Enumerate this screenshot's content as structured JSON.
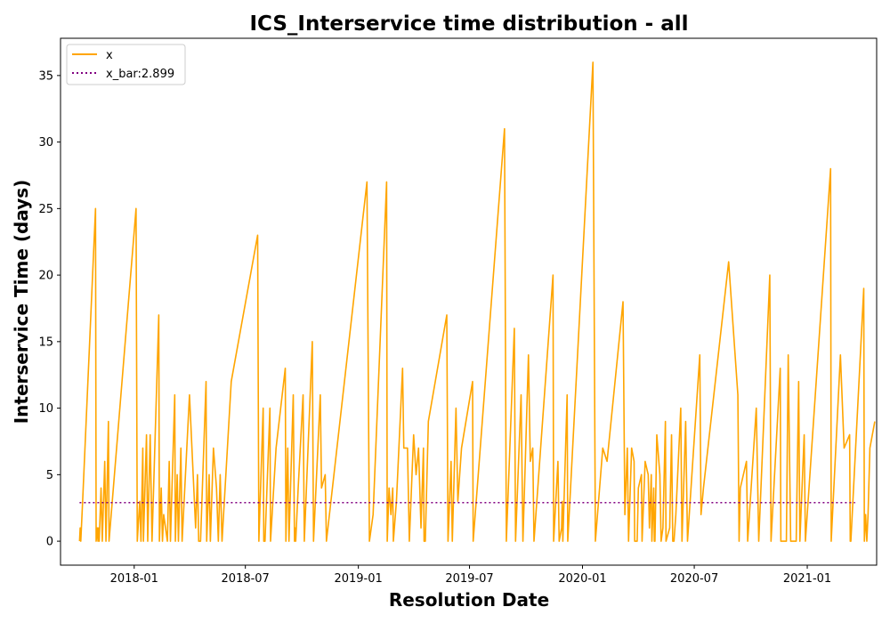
{
  "chart_data": {
    "type": "line",
    "title": "ICS_Interservice time distribution - all",
    "xlabel": "Resolution Date",
    "ylabel": "Interservice Time (days)",
    "xlim": [
      "2017-09-03",
      "2021-04-24"
    ],
    "ylim": [
      -1.8,
      37.8
    ],
    "x_ticks": [
      "2018-01",
      "2018-07",
      "2019-01",
      "2019-07",
      "2020-01",
      "2020-07",
      "2021-01"
    ],
    "y_ticks": [
      0,
      5,
      10,
      15,
      20,
      25,
      30,
      35
    ],
    "grid": false,
    "legend_position": "top-left",
    "legend": [
      "x",
      "x_bar:2.899"
    ],
    "mean_line": {
      "name": "x_bar:2.899",
      "value": 2.899,
      "color": "#800080",
      "style": "dotted",
      "x_range": [
        "2017-10-04",
        "2021-03-20"
      ]
    },
    "series": [
      {
        "name": "x",
        "color": "#FFA500",
        "points": [
          [
            "2017-10-04",
            0
          ],
          [
            "2017-10-05",
            1
          ],
          [
            "2017-10-06",
            0
          ],
          [
            "2017-10-09",
            3
          ],
          [
            "2017-10-30",
            25
          ],
          [
            "2017-10-31",
            0
          ],
          [
            "2017-11-02",
            1
          ],
          [
            "2017-11-03",
            0
          ],
          [
            "2017-11-04",
            1
          ],
          [
            "2017-11-05",
            0
          ],
          [
            "2017-11-08",
            4
          ],
          [
            "2017-11-10",
            0
          ],
          [
            "2017-11-14",
            6
          ],
          [
            "2017-11-16",
            0
          ],
          [
            "2017-11-20",
            9
          ],
          [
            "2017-11-21",
            0
          ],
          [
            "2018-01-04",
            25
          ],
          [
            "2018-01-06",
            0
          ],
          [
            "2018-01-10",
            3
          ],
          [
            "2018-01-12",
            0
          ],
          [
            "2018-01-15",
            7
          ],
          [
            "2018-01-16",
            0
          ],
          [
            "2018-01-21",
            8
          ],
          [
            "2018-01-23",
            0
          ],
          [
            "2018-01-27",
            8
          ],
          [
            "2018-01-30",
            0
          ],
          [
            "2018-02-10",
            17
          ],
          [
            "2018-02-11",
            0
          ],
          [
            "2018-02-14",
            4
          ],
          [
            "2018-02-16",
            0
          ],
          [
            "2018-02-18",
            2
          ],
          [
            "2018-02-21",
            1
          ],
          [
            "2018-02-24",
            0
          ],
          [
            "2018-02-27",
            6
          ],
          [
            "2018-03-01",
            0
          ],
          [
            "2018-03-08",
            11
          ],
          [
            "2018-03-09",
            0
          ],
          [
            "2018-03-12",
            5
          ],
          [
            "2018-03-14",
            0
          ],
          [
            "2018-03-18",
            7
          ],
          [
            "2018-03-20",
            0
          ],
          [
            "2018-04-01",
            11
          ],
          [
            "2018-04-07",
            5
          ],
          [
            "2018-04-11",
            1
          ],
          [
            "2018-04-14",
            5
          ],
          [
            "2018-04-16",
            0
          ],
          [
            "2018-04-19",
            0
          ],
          [
            "2018-04-28",
            12
          ],
          [
            "2018-04-29",
            0
          ],
          [
            "2018-05-03",
            5
          ],
          [
            "2018-05-05",
            0
          ],
          [
            "2018-05-10",
            7
          ],
          [
            "2018-05-15",
            4
          ],
          [
            "2018-05-18",
            0
          ],
          [
            "2018-05-21",
            5
          ],
          [
            "2018-05-24",
            0
          ],
          [
            "2018-06-08",
            12
          ],
          [
            "2018-07-21",
            23
          ],
          [
            "2018-07-23",
            0
          ],
          [
            "2018-07-30",
            10
          ],
          [
            "2018-07-31",
            0
          ],
          [
            "2018-08-02",
            0
          ],
          [
            "2018-08-10",
            10
          ],
          [
            "2018-08-11",
            0
          ],
          [
            "2018-08-20",
            7
          ],
          [
            "2018-09-04",
            13
          ],
          [
            "2018-09-05",
            0
          ],
          [
            "2018-09-08",
            7
          ],
          [
            "2018-09-10",
            0
          ],
          [
            "2018-09-17",
            11
          ],
          [
            "2018-09-19",
            0
          ],
          [
            "2018-09-20",
            1
          ],
          [
            "2018-09-21",
            0
          ],
          [
            "2018-09-22",
            1
          ],
          [
            "2018-09-25",
            4
          ],
          [
            "2018-10-03",
            11
          ],
          [
            "2018-10-05",
            0
          ],
          [
            "2018-10-18",
            15
          ],
          [
            "2018-10-20",
            0
          ],
          [
            "2018-10-31",
            11
          ],
          [
            "2018-11-02",
            4
          ],
          [
            "2018-11-08",
            5
          ],
          [
            "2018-11-10",
            0
          ],
          [
            "2019-01-15",
            27
          ],
          [
            "2019-01-19",
            0
          ],
          [
            "2019-01-25",
            2
          ],
          [
            "2019-02-16",
            27
          ],
          [
            "2019-02-17",
            0
          ],
          [
            "2019-02-20",
            4
          ],
          [
            "2019-02-23",
            2
          ],
          [
            "2019-02-26",
            4
          ],
          [
            "2019-02-27",
            0
          ],
          [
            "2019-03-04",
            3
          ],
          [
            "2019-03-14",
            13
          ],
          [
            "2019-03-16",
            7
          ],
          [
            "2019-03-22",
            7
          ],
          [
            "2019-03-25",
            0
          ],
          [
            "2019-04-01",
            8
          ],
          [
            "2019-04-05",
            5
          ],
          [
            "2019-04-09",
            7
          ],
          [
            "2019-04-13",
            1
          ],
          [
            "2019-04-17",
            7
          ],
          [
            "2019-04-18",
            0
          ],
          [
            "2019-04-20",
            0
          ],
          [
            "2019-04-25",
            9
          ],
          [
            "2019-05-25",
            17
          ],
          [
            "2019-05-27",
            0
          ],
          [
            "2019-06-01",
            6
          ],
          [
            "2019-06-03",
            0
          ],
          [
            "2019-06-09",
            10
          ],
          [
            "2019-06-12",
            3
          ],
          [
            "2019-06-18",
            7
          ],
          [
            "2019-07-06",
            12
          ],
          [
            "2019-07-07",
            0
          ],
          [
            "2019-08-27",
            31
          ],
          [
            "2019-08-30",
            0
          ],
          [
            "2019-09-12",
            16
          ],
          [
            "2019-09-14",
            0
          ],
          [
            "2019-09-23",
            11
          ],
          [
            "2019-09-26",
            0
          ],
          [
            "2019-10-05",
            14
          ],
          [
            "2019-10-08",
            6
          ],
          [
            "2019-10-12",
            7
          ],
          [
            "2019-10-14",
            0
          ],
          [
            "2019-11-14",
            20
          ],
          [
            "2019-11-15",
            0
          ],
          [
            "2019-11-22",
            6
          ],
          [
            "2019-11-24",
            0
          ],
          [
            "2019-11-28",
            1
          ],
          [
            "2019-11-29",
            3
          ],
          [
            "2019-11-30",
            0
          ],
          [
            "2019-12-07",
            11
          ],
          [
            "2019-12-08",
            0
          ],
          [
            "2020-01-18",
            36
          ],
          [
            "2020-01-22",
            0
          ],
          [
            "2020-02-03",
            7
          ],
          [
            "2020-02-10",
            6
          ],
          [
            "2020-03-07",
            18
          ],
          [
            "2020-03-10",
            2
          ],
          [
            "2020-03-14",
            7
          ],
          [
            "2020-03-16",
            0
          ],
          [
            "2020-03-21",
            7
          ],
          [
            "2020-03-25",
            6
          ],
          [
            "2020-03-26",
            0
          ],
          [
            "2020-03-28",
            0
          ],
          [
            "2020-03-30",
            0
          ],
          [
            "2020-04-01",
            4
          ],
          [
            "2020-04-06",
            5
          ],
          [
            "2020-04-07",
            0
          ],
          [
            "2020-04-12",
            6
          ],
          [
            "2020-04-17",
            5
          ],
          [
            "2020-04-19",
            1
          ],
          [
            "2020-04-22",
            5
          ],
          [
            "2020-04-23",
            0
          ],
          [
            "2020-04-26",
            4
          ],
          [
            "2020-04-27",
            0
          ],
          [
            "2020-04-28",
            0
          ],
          [
            "2020-05-01",
            8
          ],
          [
            "2020-05-06",
            5
          ],
          [
            "2020-05-08",
            0
          ],
          [
            "2020-05-11",
            1
          ],
          [
            "2020-05-15",
            9
          ],
          [
            "2020-05-16",
            0
          ],
          [
            "2020-05-22",
            1
          ],
          [
            "2020-05-25",
            8
          ],
          [
            "2020-05-27",
            0
          ],
          [
            "2020-05-29",
            0
          ],
          [
            "2020-06-01",
            2
          ],
          [
            "2020-06-03",
            4
          ],
          [
            "2020-06-09",
            10
          ],
          [
            "2020-06-11",
            0
          ],
          [
            "2020-06-17",
            9
          ],
          [
            "2020-06-20",
            0
          ],
          [
            "2020-07-10",
            14
          ],
          [
            "2020-07-12",
            2
          ],
          [
            "2020-07-16",
            4
          ],
          [
            "2020-08-26",
            21
          ],
          [
            "2020-09-10",
            11
          ],
          [
            "2020-09-12",
            0
          ],
          [
            "2020-09-14",
            4
          ],
          [
            "2020-09-24",
            6
          ],
          [
            "2020-09-26",
            0
          ],
          [
            "2020-10-10",
            10
          ],
          [
            "2020-10-14",
            0
          ],
          [
            "2020-11-01",
            20
          ],
          [
            "2020-11-03",
            0
          ],
          [
            "2020-11-18",
            13
          ],
          [
            "2020-11-19",
            0
          ],
          [
            "2020-11-28",
            0
          ],
          [
            "2020-12-01",
            14
          ],
          [
            "2020-12-05",
            0
          ],
          [
            "2020-12-14",
            0
          ],
          [
            "2020-12-18",
            12
          ],
          [
            "2020-12-20",
            0
          ],
          [
            "2020-12-27",
            8
          ],
          [
            "2020-12-29",
            0
          ],
          [
            "2021-02-08",
            28
          ],
          [
            "2021-02-09",
            0
          ],
          [
            "2021-02-24",
            14
          ],
          [
            "2021-03-02",
            7
          ],
          [
            "2021-03-11",
            8
          ],
          [
            "2021-03-12",
            0
          ],
          [
            "2021-03-13",
            0
          ],
          [
            "2021-04-03",
            19
          ],
          [
            "2021-04-04",
            0
          ],
          [
            "2021-04-06",
            2
          ],
          [
            "2021-04-08",
            0
          ],
          [
            "2021-04-10",
            2
          ],
          [
            "2021-04-13",
            7
          ],
          [
            "2021-04-21",
            9
          ]
        ]
      }
    ]
  }
}
